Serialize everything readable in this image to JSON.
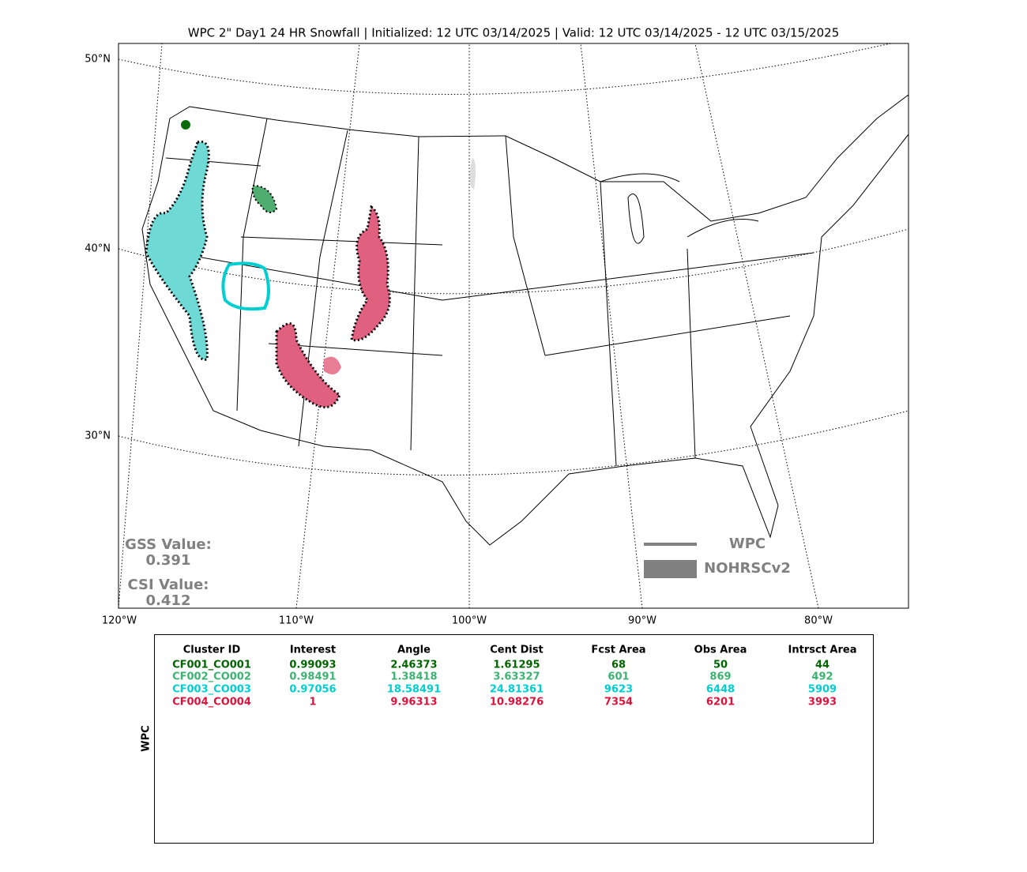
{
  "map": {
    "title": "WPC 2\" Day1 24 HR Snowfall | Initialized: 12 UTC 03/14/2025 | Valid: 12 UTC 03/14/2025 - 12 UTC 03/15/2025",
    "lat_labels": [
      "50°N",
      "40°N",
      "30°N"
    ],
    "lon_labels": [
      "120°W",
      "110°W",
      "100°W",
      "90°W",
      "80°W"
    ],
    "scores": [
      {
        "label": "GSS Value:",
        "value": "0.391"
      },
      {
        "label": "CSI Value:",
        "value": "0.412"
      }
    ],
    "legend": [
      "WPC",
      "NOHRSCv2"
    ]
  },
  "table": {
    "side_label": "WPC",
    "columns": [
      "Cluster ID",
      "Interest",
      "Angle",
      "Cent Dist",
      "Fcst Area",
      "Obs Area",
      "Intrsct Area"
    ],
    "rows": [
      {
        "color": "#006400",
        "cells": [
          "CF001_CO001",
          "0.99093",
          "2.46373",
          "1.61295",
          "68",
          "50",
          "44"
        ]
      },
      {
        "color": "#3cb371",
        "cells": [
          "CF002_CO002",
          "0.98491",
          "1.38418",
          "3.63327",
          "601",
          "869",
          "492"
        ]
      },
      {
        "color": "#00ced1",
        "cells": [
          "CF003_CO003",
          "0.97056",
          "18.58491",
          "24.81361",
          "9623",
          "6448",
          "5909"
        ]
      },
      {
        "color": "#dc143c",
        "cells": [
          "CF004_CO004",
          "1",
          "9.96313",
          "10.98276",
          "7354",
          "6201",
          "3993"
        ]
      }
    ]
  }
}
